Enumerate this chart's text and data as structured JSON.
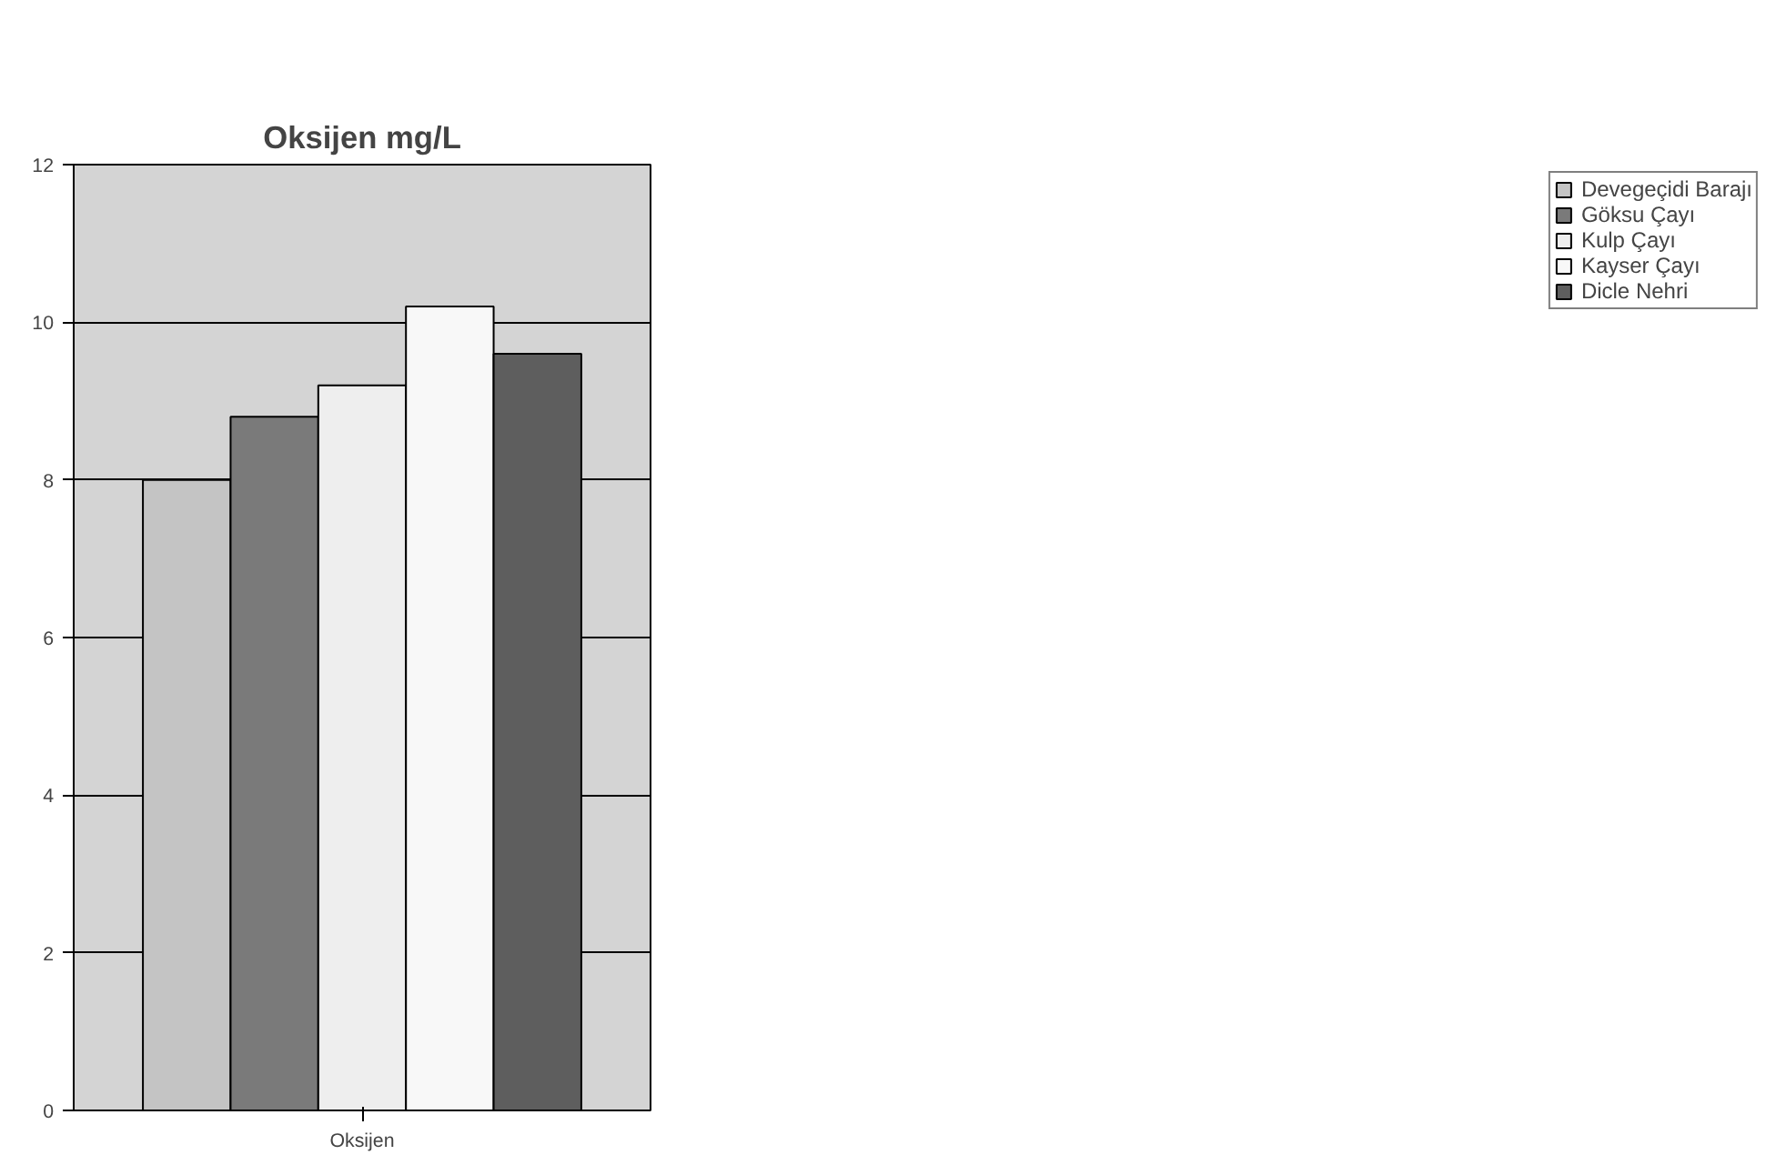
{
  "chart_data": {
    "type": "bar",
    "title": "Oksijen mg/L",
    "categories": [
      "Oksijen"
    ],
    "series": [
      {
        "name": "Devegeçidi Barajı",
        "color": "#c4c4c4",
        "values": [
          8.0
        ]
      },
      {
        "name": "Göksu Çayı",
        "color": "#7a7a7a",
        "values": [
          8.8
        ]
      },
      {
        "name": "Kulp Çayı",
        "color": "#eeeeee",
        "values": [
          9.2
        ]
      },
      {
        "name": "Kayser Çayı",
        "color": "#f8f8f8",
        "values": [
          10.2
        ]
      },
      {
        "name": "Dicle Nehri",
        "color": "#5e5e5e",
        "values": [
          9.6
        ]
      }
    ],
    "ylim": [
      0,
      12
    ],
    "yticks": [
      0,
      2,
      4,
      6,
      8,
      10,
      12
    ],
    "grid": "y",
    "legend": "right"
  }
}
